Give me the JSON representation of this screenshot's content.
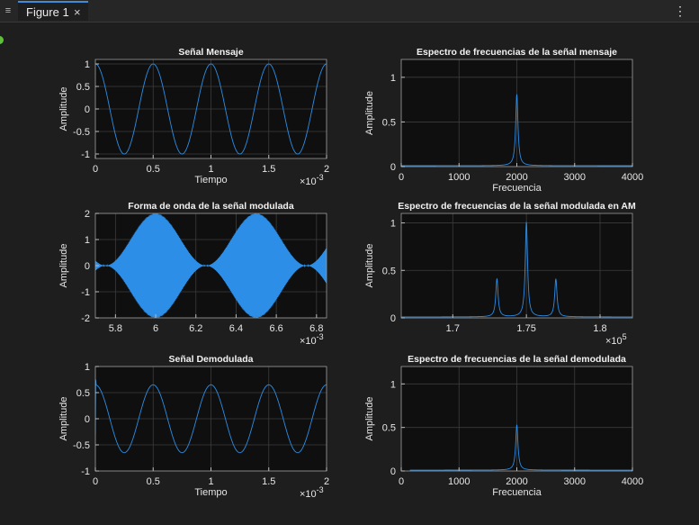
{
  "window": {
    "tab_label": "Figure 1",
    "close_glyph": "×",
    "menu_glyph": "⋮",
    "tab_menu_glyph": "≡"
  },
  "colors": {
    "background": "#1e1e1e",
    "axes_bg": "#0f0f0f",
    "grid": "#3c3c3c",
    "line": "#2c8ee6",
    "text": "#e6e6e6",
    "accent": "#3d8bd9"
  },
  "chart_data": [
    {
      "type": "line",
      "title": "Señal Mensaje",
      "xlabel": "Tiempo",
      "ylabel": "Amplitude",
      "x_multiplier": "×10",
      "x_exponent": "-3",
      "xlim": [
        0,
        0.002
      ],
      "ylim": [
        -1.1,
        1.1
      ],
      "xticks": [
        0,
        0.0005,
        0.001,
        0.0015,
        0.002
      ],
      "xtick_labels": [
        "0",
        "0.5",
        "1",
        "1.5",
        "2"
      ],
      "yticks": [
        -1,
        -0.5,
        0,
        0.5,
        1
      ],
      "ytick_labels": [
        "-1",
        "-0.5",
        "0",
        "0.5",
        "1"
      ],
      "grid": true,
      "signal": {
        "kind": "cosine",
        "amplitude": 1,
        "frequency_hz": 2000,
        "x_start": 0,
        "x_end": 0.002
      }
    },
    {
      "type": "line",
      "title": "Espectro de frecuencias de la señal mensaje",
      "xlabel": "Frecuencia",
      "ylabel": "Amplitude",
      "xlim": [
        0,
        4000
      ],
      "ylim": [
        0,
        1.2
      ],
      "xticks": [
        0,
        1000,
        2000,
        3000,
        4000
      ],
      "xtick_labels": [
        "0",
        "1000",
        "2000",
        "3000",
        "4000"
      ],
      "yticks": [
        0,
        0.5,
        1
      ],
      "ytick_labels": [
        "0",
        "0.5",
        "1"
      ],
      "grid": true,
      "peaks": [
        {
          "x": 2000,
          "y": 0.8
        }
      ],
      "baseline": 0.01
    },
    {
      "type": "line",
      "title": "Forma de onda de la señal modulada",
      "xlabel": "",
      "ylabel": "Amplitude",
      "x_multiplier": "×10",
      "x_exponent": "-3",
      "xlim": [
        0.0057,
        0.00685
      ],
      "ylim": [
        -2,
        2
      ],
      "xticks": [
        0.0058,
        0.006,
        0.0062,
        0.0064,
        0.0066,
        0.0068
      ],
      "xtick_labels": [
        "5.8",
        "6",
        "6.2",
        "6.4",
        "6.6",
        "6.8"
      ],
      "yticks": [
        -2,
        -1,
        0,
        1,
        2
      ],
      "ytick_labels": [
        "-2",
        "-1",
        "0",
        "1",
        "2"
      ],
      "grid": true,
      "signal": {
        "kind": "am",
        "message_frequency_hz": 2000,
        "envelope_peak": 2,
        "envelope_peak_at": 0.006
      }
    },
    {
      "type": "line",
      "title": "Espectro de frecuencias de la señal modulada en AM",
      "xlabel": "",
      "ylabel": "Amplitude",
      "x_multiplier": "×10",
      "x_exponent": "5",
      "xlim": [
        166500,
        182200
      ],
      "ylim": [
        0,
        1.1
      ],
      "xticks": [
        170000,
        175000,
        180000
      ],
      "xtick_labels": [
        "1.7",
        "1.75",
        "1.8"
      ],
      "yticks": [
        0,
        0.5,
        1
      ],
      "ytick_labels": [
        "0",
        "0.5",
        "1"
      ],
      "grid": true,
      "peaks": [
        {
          "x": 173000,
          "y": 0.4
        },
        {
          "x": 175000,
          "y": 1.0
        },
        {
          "x": 177000,
          "y": 0.4
        }
      ],
      "baseline": 0.01
    },
    {
      "type": "line",
      "title": "Señal Demodulada",
      "xlabel": "Tiempo",
      "ylabel": "Amplitude",
      "x_multiplier": "×10",
      "x_exponent": "-3",
      "xlim": [
        0,
        0.002
      ],
      "ylim": [
        -1,
        1
      ],
      "xticks": [
        0,
        0.0005,
        0.001,
        0.0015,
        0.002
      ],
      "xtick_labels": [
        "0",
        "0.5",
        "1",
        "1.5",
        "2"
      ],
      "yticks": [
        -1,
        -0.5,
        0,
        0.5,
        1
      ],
      "ytick_labels": [
        "-1",
        "-0.5",
        "0",
        "0.5",
        "1"
      ],
      "grid": true,
      "signal": {
        "kind": "cosine",
        "amplitude": 0.65,
        "frequency_hz": 2000,
        "x_start": 0,
        "x_end": 0.002,
        "start_transient": true
      }
    },
    {
      "type": "line",
      "title": "Espectro de frecuencias de la señal demodulada",
      "xlabel": "Frecuencia",
      "ylabel": "Amplitude",
      "xlim": [
        0,
        4000
      ],
      "ylim": [
        0,
        1.2
      ],
      "xticks": [
        0,
        1000,
        2000,
        3000,
        4000
      ],
      "xtick_labels": [
        "0",
        "1000",
        "2000",
        "3000",
        "4000"
      ],
      "yticks": [
        0,
        0.5,
        1
      ],
      "ytick_labels": [
        "0",
        "0.5",
        "1"
      ],
      "grid": true,
      "peaks": [
        {
          "x": 2000,
          "y": 0.52
        }
      ],
      "baseline": 0.01,
      "x_start": 150
    }
  ]
}
